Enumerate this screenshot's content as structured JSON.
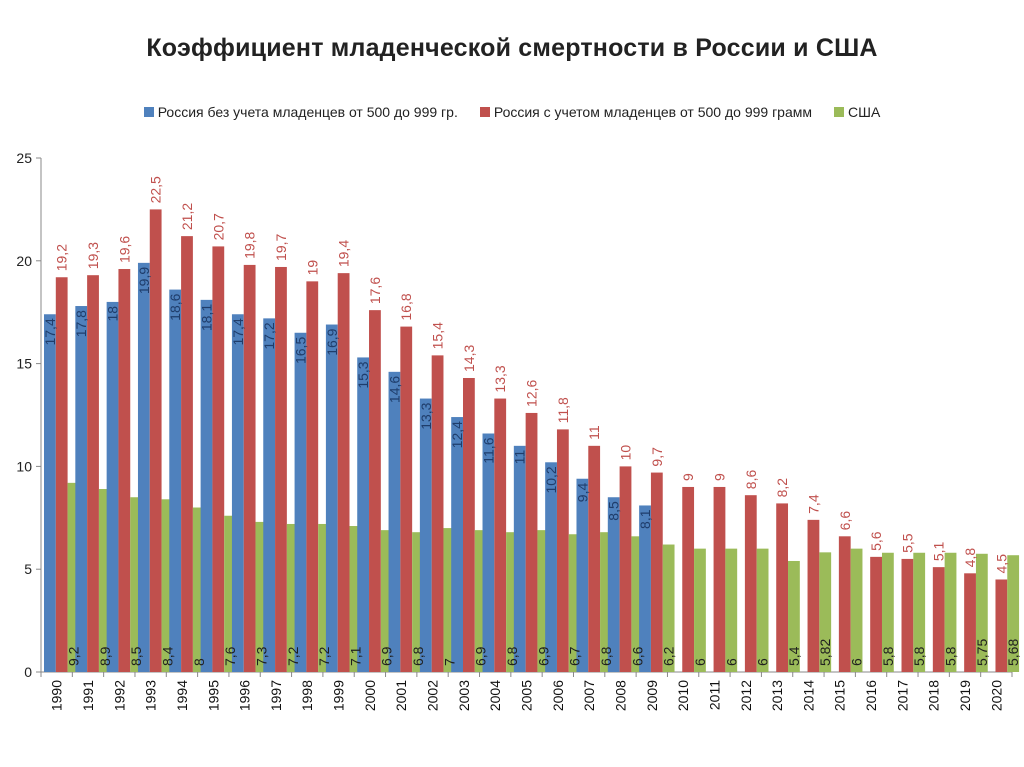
{
  "chart_data": {
    "type": "bar",
    "title": "Коэффициент младенческой смертности в России и США",
    "xlabel": "",
    "ylabel": "",
    "ylim": [
      0,
      25
    ],
    "yticks": [
      "0",
      "5",
      "10",
      "15",
      "20",
      "25"
    ],
    "legend_position": "top",
    "categories": [
      "1990",
      "1991",
      "1992",
      "1993",
      "1994",
      "1995",
      "1996",
      "1997",
      "1998",
      "1999",
      "2000",
      "2001",
      "2002",
      "2003",
      "2004",
      "2005",
      "2006",
      "2007",
      "2008",
      "2009",
      "2010",
      "2011",
      "2012",
      "2013",
      "2014",
      "2015",
      "2016",
      "2017",
      "2018",
      "2019",
      "2020"
    ],
    "series": [
      {
        "name": "Россия без учета младенцев от 500 до 999 гр.",
        "color": "#4F81BD",
        "label_color": "#1F3D6B",
        "values": [
          17.4,
          17.8,
          18,
          19.9,
          18.6,
          18.1,
          17.4,
          17.2,
          16.5,
          16.9,
          15.3,
          14.6,
          13.3,
          12.4,
          11.6,
          11,
          10.2,
          9.4,
          8.5,
          8.1,
          null,
          null,
          null,
          null,
          null,
          null,
          null,
          null,
          null,
          null,
          null
        ],
        "labels": [
          "17,4",
          "17,8",
          "18",
          "19,9",
          "18,6",
          "18,1",
          "17,4",
          "17,2",
          "16,5",
          "16,9",
          "15,3",
          "14,6",
          "13,3",
          "12,4",
          "11,6",
          "11",
          "10,2",
          "9,4",
          "8,5",
          "8,1",
          null,
          null,
          null,
          null,
          null,
          null,
          null,
          null,
          null,
          null,
          null
        ]
      },
      {
        "name": "Россия с учетом  младенцев от 500 до 999 грамм",
        "color": "#C0504D",
        "label_color": "#C0504D",
        "values": [
          19.2,
          19.3,
          19.6,
          22.5,
          21.2,
          20.7,
          19.8,
          19.7,
          19,
          19.4,
          17.6,
          16.8,
          15.4,
          14.3,
          13.3,
          12.6,
          11.8,
          11,
          10,
          9.7,
          9,
          9,
          8.6,
          8.2,
          7.4,
          6.6,
          5.6,
          5.5,
          5.1,
          4.8,
          4.5
        ],
        "labels": [
          "19,2",
          "19,3",
          "19,6",
          "22,5",
          "21,2",
          "20,7",
          "19,8",
          "19,7",
          "19",
          "19,4",
          "17,6",
          "16,8",
          "15,4",
          "14,3",
          "13,3",
          "12,6",
          "11,8",
          "11",
          "10",
          "9,7",
          "9",
          "9",
          "8,6",
          "8,2",
          "7,4",
          "6,6",
          "5,6",
          "5,5",
          "5,1",
          "4,8",
          "4,5"
        ]
      },
      {
        "name": "США",
        "color": "#9BBB59",
        "label_color": "#1F1F1F",
        "values": [
          9.2,
          8.9,
          8.5,
          8.4,
          8,
          7.6,
          7.3,
          7.2,
          7.2,
          7.1,
          6.9,
          6.8,
          7,
          6.9,
          6.8,
          6.9,
          6.7,
          6.8,
          6.6,
          6.2,
          6,
          6,
          6,
          5.4,
          5.82,
          6,
          5.8,
          5.8,
          5.8,
          5.75,
          5.68
        ],
        "labels": [
          "9,2",
          "8,9",
          "8,5",
          "8,4",
          "8",
          "7,6",
          "7,3",
          "7,2",
          "7,2",
          "7,1",
          "6,9",
          "6,8",
          "7",
          "6,9",
          "6,8",
          "6,9",
          "6,7",
          "6,8",
          "6,6",
          "6,2",
          "6",
          "6",
          "6",
          "5,4",
          "5,82",
          "6",
          "5,8",
          "5,8",
          "5,8",
          "5,75",
          "5,68"
        ]
      }
    ]
  }
}
